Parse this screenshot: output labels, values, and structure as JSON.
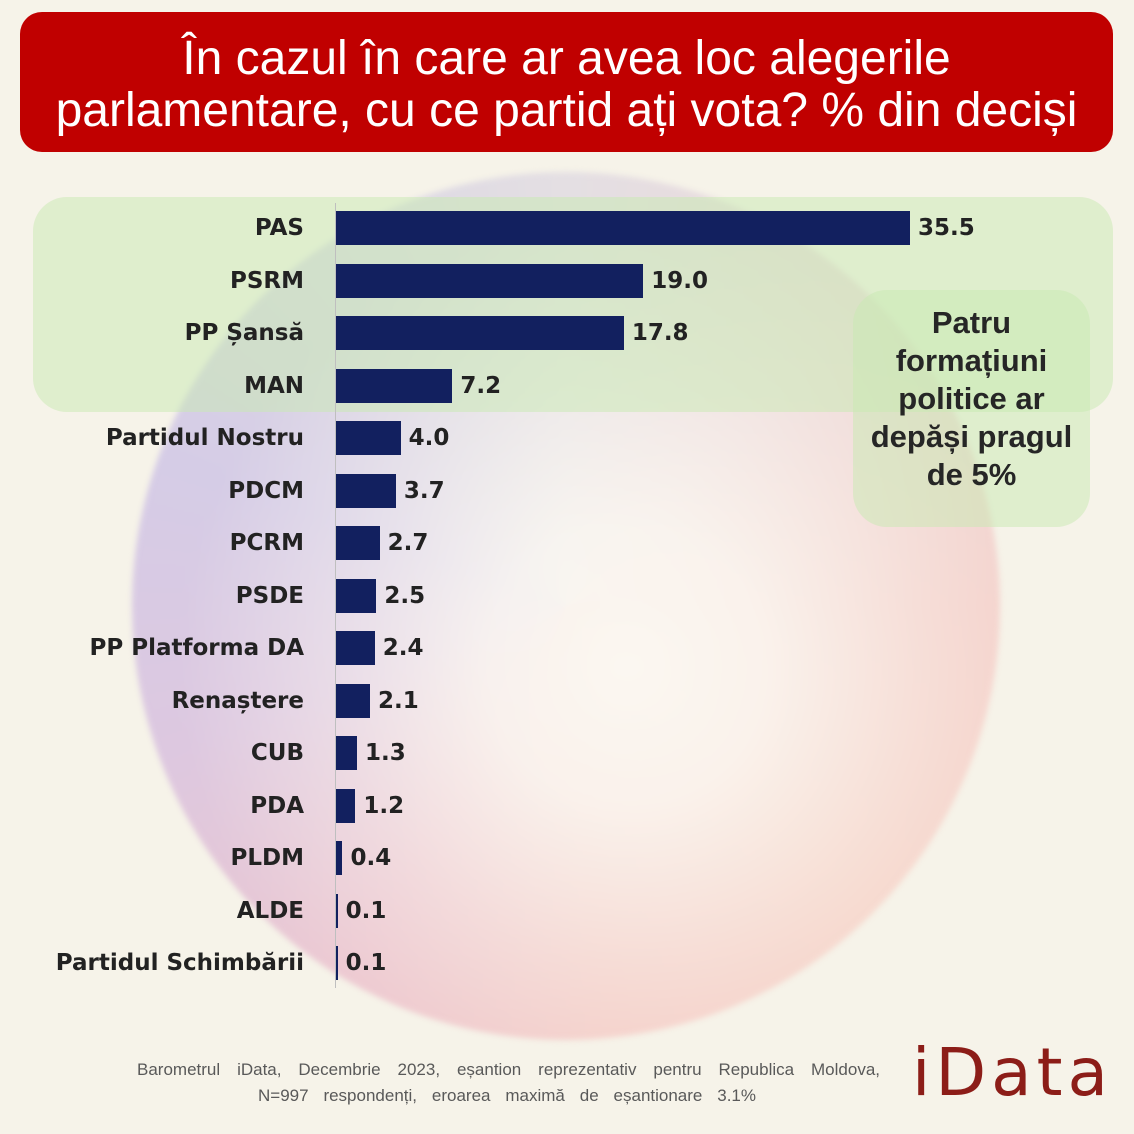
{
  "chart_data": {
    "type": "bar",
    "title": "În cazul în care ar avea loc alegerile\nparlamentare, cu ce partid ați vota? % din deciși",
    "categories": [
      "PAS",
      "PSRM",
      "PP Șansă",
      "MAN",
      "Partidul Nostru",
      "PDCM",
      "PCRM",
      "PSDE",
      "PP Platforma DA",
      "Renaștere",
      "CUB",
      "PDA",
      "PLDM",
      "ALDE",
      "Partidul Schimbării"
    ],
    "values": [
      35.5,
      19.0,
      17.8,
      7.2,
      4.0,
      3.7,
      2.7,
      2.5,
      2.4,
      2.1,
      1.3,
      1.2,
      0.4,
      0.1,
      0.1
    ],
    "value_labels": [
      "35.5",
      "19.0",
      "17.8",
      "7.2",
      "4.0",
      "3.7",
      "2.7",
      "2.5",
      "2.4",
      "2.1",
      "1.3",
      "1.2",
      "0.4",
      "0.1",
      "0.1"
    ],
    "annotation": "Patru\nformațiuni\npolitice ar\ndepăși pragul\nde 5%",
    "grid": false
  },
  "footer": {
    "source_lines": [
      "Barometrul iData, Decembrie 2023, eșantion reprezentativ pentru Republica Moldova,",
      "N=997 respondenți, eroarea maximă de eșantionare 3.1%"
    ]
  },
  "brand": {
    "logo_text": "iData"
  },
  "colors": {
    "page_background": "#f6f3e9",
    "header_background": "#c00000",
    "header_text": "#ffffff",
    "bar": "#12205f",
    "label_text": "#222222",
    "axis_line": "#bfbfbf",
    "highlight_box": "#c8e9b1",
    "annotation_text": "#262626",
    "footer_text": "#595959",
    "logo": "#8c1d18"
  }
}
